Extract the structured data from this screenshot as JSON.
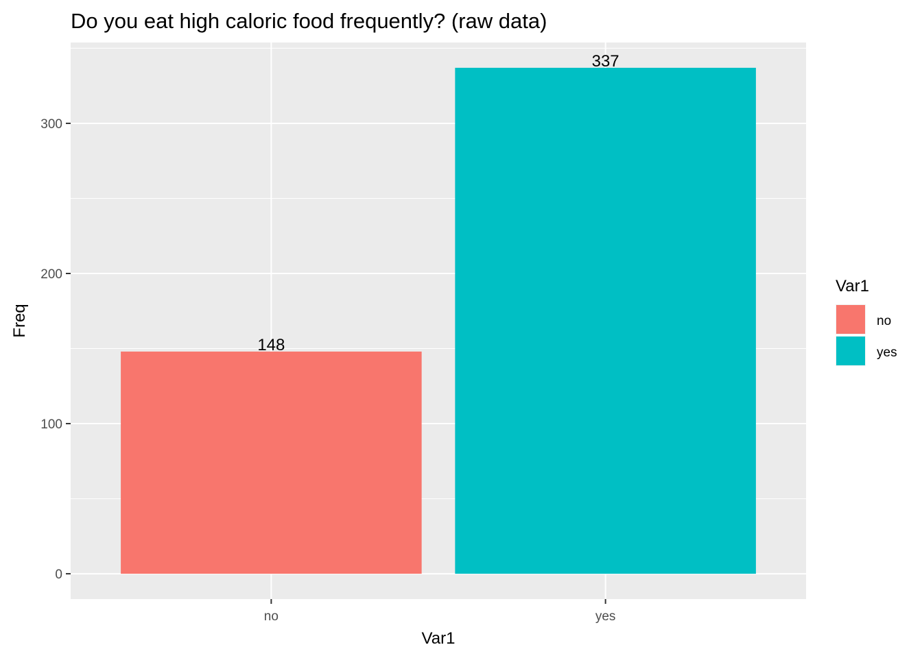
{
  "chart_data": {
    "type": "bar",
    "title": "Do you eat high caloric food frequently? (raw data)",
    "xlabel": "Var1",
    "ylabel": "Freq",
    "categories": [
      "no",
      "yes"
    ],
    "values": [
      148,
      337
    ],
    "data_labels": [
      "148",
      "337"
    ],
    "colors": [
      "#F8766D",
      "#00BFC4"
    ],
    "ylim": [
      -16.85,
      353.85
    ],
    "yticks": [
      0,
      100,
      200,
      300
    ],
    "ytick_labels": [
      "0",
      "100",
      "200",
      "300"
    ],
    "grid": true,
    "panel_background": "#EBEBEB",
    "legend": {
      "title": "Var1",
      "position": "right",
      "entries": [
        "no",
        "yes"
      ]
    }
  }
}
